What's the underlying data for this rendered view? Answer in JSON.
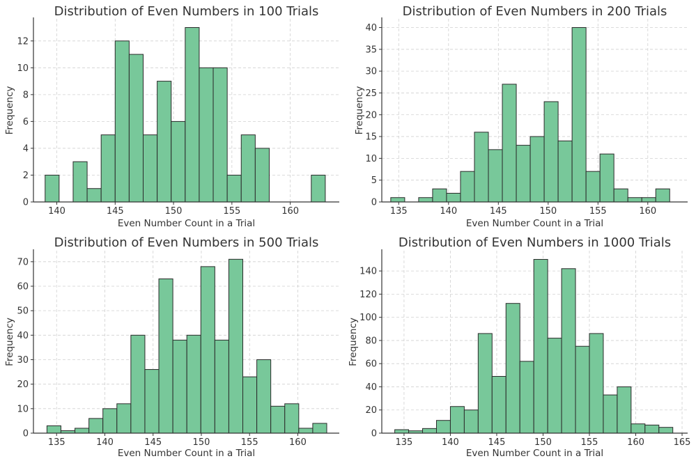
{
  "colors": {
    "bar_fill": "#78c89a",
    "bar_edge": "#2a2a2a",
    "text": "#333333",
    "grid": "#d0d0d0"
  },
  "chart_data": [
    {
      "type": "bar",
      "title": "Distribution of Even Numbers in 100 Trials",
      "xlabel": "Even Number Count in a Trial",
      "ylabel": "Frequency",
      "xlim": [
        138,
        164.2
      ],
      "ylim": [
        0,
        13.65
      ],
      "xticks": [
        140,
        145,
        150,
        155,
        160
      ],
      "yticks": [
        0,
        2,
        4,
        6,
        8,
        10,
        12
      ],
      "grid": true,
      "bins": [
        [
          139,
          140.2
        ],
        [
          141.4,
          142.6
        ],
        [
          142.6,
          143.8
        ],
        [
          143.8,
          145
        ],
        [
          145,
          146.2
        ],
        [
          146.2,
          147.4
        ],
        [
          147.4,
          148.6
        ],
        [
          148.6,
          149.8
        ],
        [
          149.8,
          151
        ],
        [
          151,
          152.2
        ],
        [
          152.2,
          153.4
        ],
        [
          153.4,
          154.6
        ],
        [
          154.6,
          155.8
        ],
        [
          155.8,
          157
        ],
        [
          157,
          158.2
        ],
        [
          161.8,
          163
        ]
      ],
      "values": [
        2,
        3,
        1,
        5,
        12,
        11,
        5,
        9,
        6,
        13,
        10,
        10,
        2,
        5,
        4,
        2
      ]
    },
    {
      "type": "bar",
      "title": "Distribution of Even Numbers in 200 Trials",
      "xlabel": "Even Number Count in a Trial",
      "ylabel": "Frequency",
      "xlim": [
        133.3,
        164.0
      ],
      "ylim": [
        0,
        42
      ],
      "xticks": [
        135,
        140,
        145,
        150,
        155,
        160
      ],
      "yticks": [
        0,
        5,
        10,
        15,
        20,
        25,
        30,
        35,
        40
      ],
      "grid": true,
      "bins": [
        [
          134.2,
          135.6
        ],
        [
          137,
          138.4
        ],
        [
          138.4,
          139.8
        ],
        [
          139.8,
          141.2
        ],
        [
          141.2,
          142.6
        ],
        [
          142.6,
          144
        ],
        [
          144,
          145.4
        ],
        [
          145.4,
          146.8
        ],
        [
          146.8,
          148.2
        ],
        [
          148.2,
          149.6
        ],
        [
          149.6,
          151
        ],
        [
          151,
          152.4
        ],
        [
          152.4,
          153.8
        ],
        [
          153.8,
          155.2
        ],
        [
          155.2,
          156.6
        ],
        [
          156.6,
          158
        ],
        [
          158,
          159.4
        ],
        [
          159.4,
          160.8
        ],
        [
          160.8,
          162.2
        ]
      ],
      "values": [
        1,
        1,
        3,
        2,
        7,
        16,
        12,
        27,
        13,
        15,
        23,
        14,
        40,
        7,
        11,
        3,
        1,
        1,
        3
      ]
    },
    {
      "type": "bar",
      "title": "Distribution of Even Numbers in 500 Trials",
      "xlabel": "Even Number Count in a Trial",
      "ylabel": "Frequency",
      "xlim": [
        132.6,
        164.3
      ],
      "ylim": [
        0,
        74.5
      ],
      "xticks": [
        135,
        140,
        145,
        150,
        155,
        160
      ],
      "yticks": [
        0,
        10,
        20,
        30,
        40,
        50,
        60,
        70
      ],
      "grid": true,
      "bins": [
        [
          134,
          135.45
        ],
        [
          135.45,
          136.9
        ],
        [
          136.9,
          138.35
        ],
        [
          138.35,
          139.8
        ],
        [
          139.8,
          141.25
        ],
        [
          141.25,
          142.7
        ],
        [
          142.7,
          144.15
        ],
        [
          144.15,
          145.6
        ],
        [
          145.6,
          147.05
        ],
        [
          147.05,
          148.5
        ],
        [
          148.5,
          149.95
        ],
        [
          149.95,
          151.4
        ],
        [
          151.4,
          152.85
        ],
        [
          152.85,
          154.3
        ],
        [
          154.3,
          155.75
        ],
        [
          155.75,
          157.2
        ],
        [
          157.2,
          158.65
        ],
        [
          158.65,
          160.1
        ],
        [
          160.1,
          161.55
        ],
        [
          161.55,
          163
        ]
      ],
      "values": [
        3,
        1,
        2,
        6,
        10,
        12,
        40,
        26,
        63,
        38,
        40,
        68,
        38,
        71,
        23,
        30,
        11,
        12,
        2,
        4
      ]
    },
    {
      "type": "bar",
      "title": "Distribution of Even Numbers in 1000 Trials",
      "xlabel": "Even Number Count in a Trial",
      "ylabel": "Frequency",
      "xlim": [
        132.6,
        165.6
      ],
      "ylim": [
        0,
        157.5
      ],
      "xticks": [
        135,
        140,
        145,
        150,
        155,
        160,
        165
      ],
      "yticks": [
        0,
        20,
        40,
        60,
        80,
        100,
        120,
        140
      ],
      "grid": true,
      "bins": [
        [
          134,
          135.5
        ],
        [
          135.5,
          137
        ],
        [
          137,
          138.5
        ],
        [
          138.5,
          140
        ],
        [
          140,
          141.5
        ],
        [
          141.5,
          143
        ],
        [
          143,
          144.5
        ],
        [
          144.5,
          146
        ],
        [
          146,
          147.5
        ],
        [
          147.5,
          149
        ],
        [
          149,
          150.5
        ],
        [
          150.5,
          152
        ],
        [
          152,
          153.5
        ],
        [
          153.5,
          155
        ],
        [
          155,
          156.5
        ],
        [
          156.5,
          158
        ],
        [
          158,
          159.5
        ],
        [
          159.5,
          161
        ],
        [
          161,
          162.5
        ],
        [
          162.5,
          164
        ]
      ],
      "values": [
        3,
        2,
        4,
        11,
        23,
        20,
        86,
        49,
        112,
        62,
        150,
        82,
        142,
        75,
        86,
        33,
        40,
        8,
        7,
        5
      ]
    }
  ]
}
